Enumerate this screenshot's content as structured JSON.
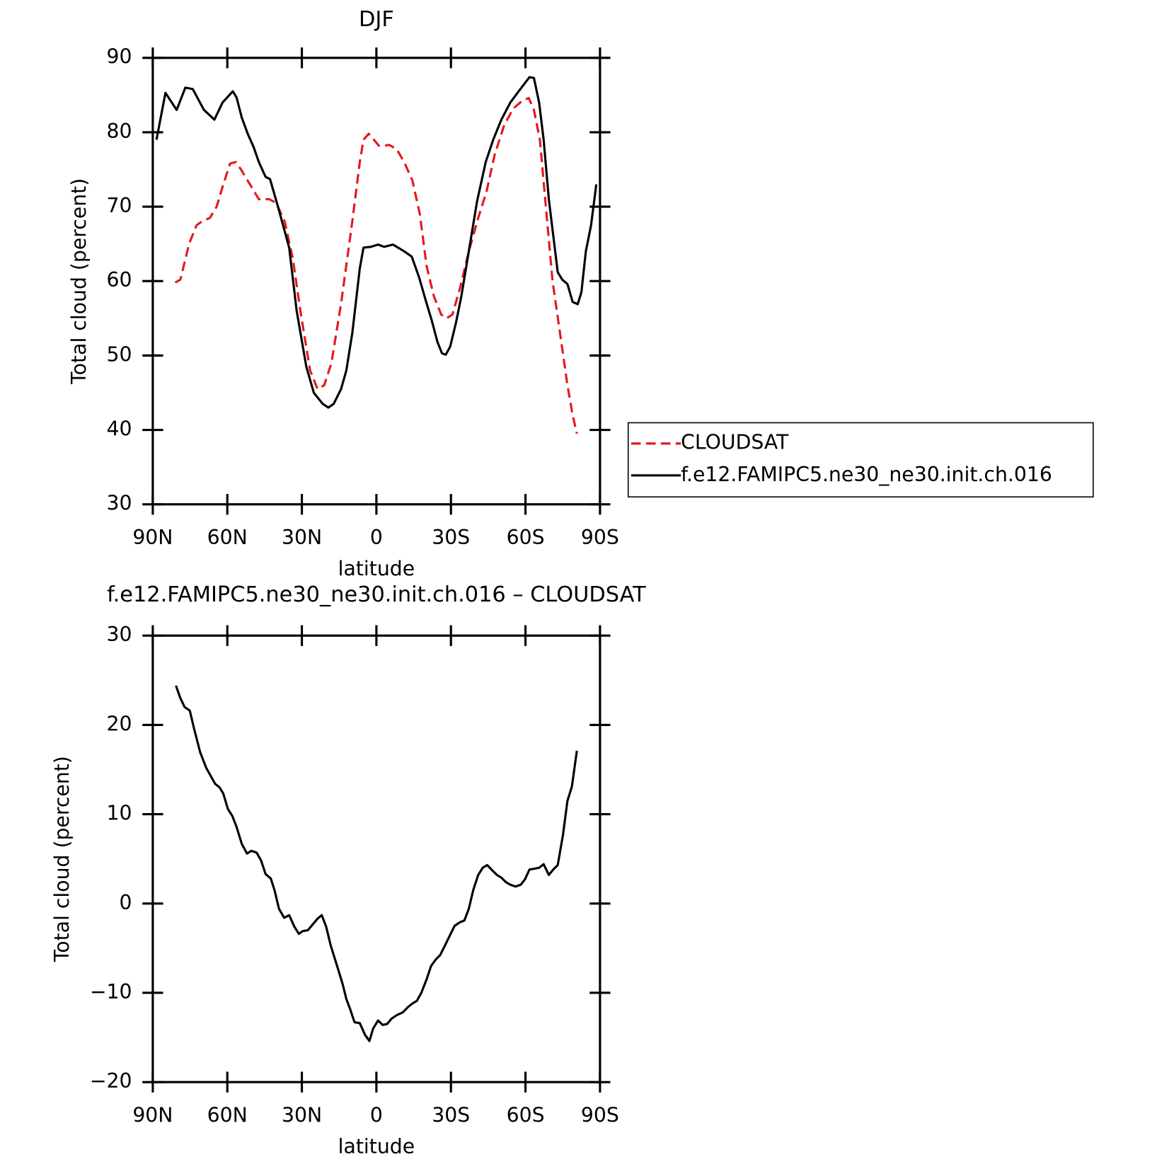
{
  "chart_data": [
    {
      "type": "line",
      "title": "DJF",
      "xlabel": "latitude",
      "ylabel": "Total cloud (percent)",
      "xlim": [
        90,
        -90
      ],
      "ylim": [
        30,
        90
      ],
      "xticks": [
        {
          "value": 90,
          "label": "90N"
        },
        {
          "value": 60,
          "label": "60N"
        },
        {
          "value": 30,
          "label": "30N"
        },
        0,
        {
          "value": -30,
          "label": "30S"
        },
        {
          "value": -60,
          "label": "60S"
        },
        {
          "value": -90,
          "label": "90S"
        }
      ],
      "yticks": [
        30,
        40,
        50,
        60,
        70,
        80,
        90
      ],
      "legend": "right",
      "series": [
        {
          "name": "CLOUDSAT",
          "color": "#e31a1c",
          "dashed": true,
          "x": [
            81,
            78.9,
            75.4,
            72.4,
            70.3,
            67,
            64.3,
            61.6,
            58.9,
            56.6,
            54.5,
            50,
            47.3,
            43.1,
            40.4,
            36.9,
            33.6,
            30.6,
            26.7,
            23.7,
            21,
            18.1,
            14.2,
            9.7,
            6.7,
            5.2,
            3.1,
            1,
            -1,
            -3.1,
            -5.2,
            -8.2,
            -11.2,
            -14.5,
            -17.5,
            -20.2,
            -23.1,
            -26.1,
            -28.2,
            -30.6,
            -33.6,
            -37.2,
            -41,
            -44.3,
            -47.6,
            -51.5,
            -55.1,
            -59,
            -61.3,
            -63.4,
            -65.8,
            -68.2,
            -70.9,
            -73.9,
            -76.9,
            -79,
            -80.7
          ],
          "values": [
            59.8,
            60.2,
            65,
            67.5,
            68,
            68.5,
            70,
            73,
            75.8,
            76,
            75,
            72.5,
            71,
            71,
            70.5,
            68,
            63,
            56,
            48,
            45.5,
            46,
            49,
            57,
            68,
            76,
            79,
            79.8,
            79,
            78.2,
            78.2,
            78.3,
            77.7,
            76,
            73.5,
            69,
            62,
            58,
            55.5,
            55,
            55.5,
            59,
            64,
            68.5,
            72,
            77,
            81,
            83.2,
            84.3,
            84.6,
            83,
            79,
            70,
            60,
            53,
            46,
            42,
            39.5
          ]
        },
        {
          "name": "f.e12.FAMIPC5.ne30_ne30.init.ch.016",
          "color": "#000000",
          "dashed": false,
          "x": [
            88.5,
            84.9,
            80.4,
            76.9,
            73.9,
            69.4,
            65.2,
            61.9,
            57.8,
            56.3,
            54.2,
            51.8,
            49.4,
            47.3,
            44.6,
            42.8,
            39.6,
            35.1,
            32.1,
            28.2,
            25.2,
            21.6,
            19.3,
            17.2,
            14.2,
            12.1,
            9.7,
            6.7,
            5.2,
            2.2,
            -0.7,
            -3.1,
            -6.7,
            -11.2,
            -14.2,
            -17.2,
            -20.2,
            -22.2,
            -24.6,
            -26.4,
            -27.9,
            -29.7,
            -32.1,
            -34.2,
            -37.2,
            -40.5,
            -44,
            -47,
            -50.3,
            -53.9,
            -57.5,
            -61.6,
            -63.4,
            -65.5,
            -67.3,
            -69.4,
            -73,
            -74.8,
            -76.9,
            -79,
            -81,
            -82.5,
            -84.3,
            -86.4,
            -88.5
          ],
          "values": [
            79,
            85.3,
            83,
            86,
            85.8,
            83,
            81.7,
            84,
            85.5,
            84.7,
            82,
            79.8,
            78,
            76,
            74,
            73.7,
            70,
            64.5,
            56,
            48.5,
            45,
            43.5,
            43,
            43.5,
            45.5,
            48,
            53,
            61.7,
            64.5,
            64.6,
            64.9,
            64.6,
            64.9,
            64,
            63.3,
            60.5,
            57,
            54.8,
            51.8,
            50.3,
            50.1,
            51.2,
            54.5,
            58,
            64,
            70.7,
            76,
            79,
            81.7,
            84,
            85.6,
            87.4,
            87.3,
            84,
            79,
            71,
            61.2,
            60.2,
            59.6,
            57.2,
            56.9,
            58.5,
            64,
            67.5,
            73
          ]
        }
      ]
    },
    {
      "type": "line",
      "title": "f.e12.FAMIPC5.ne30_ne30.init.ch.016 – CLOUDSAT",
      "xlabel": "latitude",
      "ylabel": "Total cloud (percent)",
      "xlim": [
        90,
        -90
      ],
      "ylim": [
        -20,
        30
      ],
      "xticks": [
        {
          "value": 90,
          "label": "90N"
        },
        {
          "value": 60,
          "label": "60N"
        },
        {
          "value": 30,
          "label": "30N"
        },
        0,
        {
          "value": -30,
          "label": "30S"
        },
        {
          "value": -60,
          "label": "60S"
        },
        {
          "value": -90,
          "label": "90S"
        }
      ],
      "yticks": [
        {
          "value": -20,
          "label": "−20"
        },
        {
          "value": -10,
          "label": "−10"
        },
        0,
        10,
        20,
        30
      ],
      "series": [
        {
          "color": "#000000",
          "dashed": false,
          "x": [
            80.7,
            78.9,
            77.2,
            75.1,
            73.3,
            70.9,
            68.5,
            64.9,
            63.1,
            61.6,
            59.8,
            58,
            56.3,
            54.2,
            52.1,
            50.3,
            48.2,
            46.4,
            44.6,
            42.5,
            41,
            39.2,
            37.1,
            35.1,
            33,
            31.2,
            29.7,
            27.6,
            26.1,
            23.7,
            22,
            20.2,
            18.4,
            15.7,
            13.6,
            12.1,
            10.6,
            8.8,
            6.7,
            4.6,
            2.8,
            1.3,
            -0.7,
            -2.5,
            -4.3,
            -6.1,
            -8.2,
            -10.6,
            -12.7,
            -14.5,
            -16.3,
            -18.1,
            -20.2,
            -22,
            -23.8,
            -25.6,
            -27.6,
            -29.7,
            -31.5,
            -33.6,
            -35.4,
            -37.2,
            -39,
            -41,
            -42.8,
            -44.6,
            -46.7,
            -48.5,
            -50.3,
            -52.1,
            -53.9,
            -56,
            -58.1,
            -59.8,
            -61.6,
            -63.7,
            -65.5,
            -67.3,
            -69.4,
            -71.2,
            -73,
            -75.1,
            -76.9,
            -78.7,
            -80.7
          ],
          "values": [
            24.4,
            23,
            22,
            21.6,
            19.5,
            16.9,
            15.2,
            13.4,
            13,
            12.3,
            10.6,
            9.8,
            8.6,
            6.7,
            5.6,
            5.9,
            5.7,
            4.8,
            3.3,
            2.8,
            1.5,
            -0.6,
            -1.6,
            -1.3,
            -2.6,
            -3.4,
            -3.1,
            -3,
            -2.5,
            -1.7,
            -1.3,
            -2.6,
            -4.7,
            -7.1,
            -9,
            -10.7,
            -11.8,
            -13.3,
            -13.4,
            -14.7,
            -15.4,
            -14,
            -13.1,
            -13.6,
            -13.5,
            -12.9,
            -12.5,
            -12.2,
            -11.6,
            -11.2,
            -10.9,
            -10,
            -8.5,
            -7,
            -6.3,
            -5.8,
            -4.7,
            -3.5,
            -2.5,
            -2.1,
            -1.9,
            -0.6,
            1.5,
            3.2,
            4,
            4.3,
            3.7,
            3.2,
            2.9,
            2.4,
            2.1,
            1.9,
            2.1,
            2.7,
            3.8,
            3.9,
            4,
            4.4,
            3.2,
            3.8,
            4.3,
            7.7,
            11.5,
            13.1,
            17.1
          ]
        }
      ]
    }
  ]
}
